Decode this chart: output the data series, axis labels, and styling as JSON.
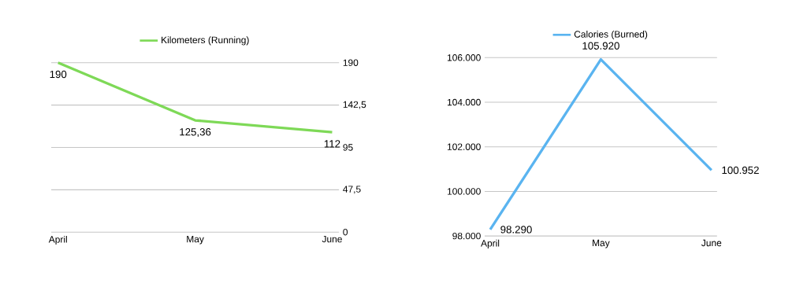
{
  "chart_data": [
    {
      "type": "line",
      "categories": [
        "April",
        "May",
        "June"
      ],
      "series": [
        {
          "name": "Kilometers (Running)",
          "color": "#7ed957",
          "values": [
            190,
            125.36,
            112
          ],
          "value_labels": [
            "190",
            "125,36",
            "112"
          ]
        }
      ],
      "ylim": [
        0,
        190
      ],
      "yticks": [
        0,
        {
          "value": 47.5,
          "label": "47,5"
        },
        95,
        {
          "value": 142.5,
          "label": "142,5"
        },
        190
      ],
      "grid": "y",
      "legend": "top"
    },
    {
      "type": "line",
      "categories": [
        "April",
        "May",
        "June"
      ],
      "series": [
        {
          "name": "Calories (Burned)",
          "color": "#5ab4f0",
          "values": [
            98290,
            105920,
            100952
          ],
          "value_labels": [
            "98.290",
            "105.920",
            "100.952"
          ]
        }
      ],
      "ylim": [
        98000,
        106000
      ],
      "yticks": [
        {
          "value": 98000,
          "label": "98.000"
        },
        {
          "value": 100000,
          "label": "100.000"
        },
        {
          "value": 102000,
          "label": "102.000"
        },
        {
          "value": 104000,
          "label": "104.000"
        },
        {
          "value": 106000,
          "label": "106.000"
        }
      ],
      "grid": "y",
      "legend": "top"
    }
  ]
}
